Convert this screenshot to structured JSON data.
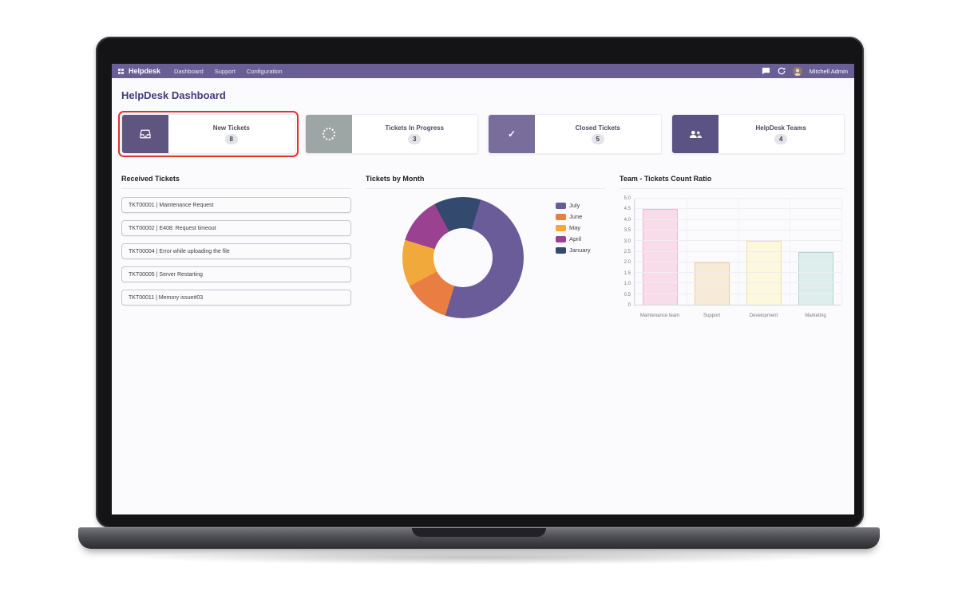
{
  "navbar": {
    "brand": "Helpdesk",
    "menu": [
      "Dashboard",
      "Support",
      "Configuration"
    ],
    "user": "Mitchell Admin"
  },
  "page": {
    "title": "HelpDesk Dashboard"
  },
  "colors": {
    "navbar_bg": "#6a5f94",
    "title": "#3f3c80",
    "highlight_border": "#e2312d"
  },
  "kpis": [
    {
      "label": "New Tickets",
      "value": "8",
      "icon": "inbox-icon",
      "icon_bg": "#5e5680",
      "highlighted": true
    },
    {
      "label": "Tickets In Progress",
      "value": "3",
      "icon": "spinner-icon",
      "icon_bg": "#9da6a4",
      "highlighted": false
    },
    {
      "label": "Closed Tickets",
      "value": "5",
      "icon": "check-icon",
      "icon_bg": "#796d9c",
      "highlighted": false
    },
    {
      "label": "HelpDesk Teams",
      "value": "4",
      "icon": "team-icon",
      "icon_bg": "#5b5383",
      "highlighted": false
    }
  ],
  "received_tickets": {
    "title": "Received Tickets",
    "items": [
      "TKT00001 | Maintenance Request",
      "TKT00002 | E408: Request timeout",
      "TKT00004 | Error while uploading the file",
      "TKT00005 | Server Restarting",
      "TKT00011 | Memory issue#03"
    ]
  },
  "chart_data": [
    {
      "type": "pie",
      "donut": true,
      "title": "Tickets by Month",
      "labels": [
        "July",
        "June",
        "May",
        "April",
        "January"
      ],
      "values": [
        4,
        1,
        1,
        1,
        1
      ],
      "colors": [
        "#6a5b99",
        "#e97e42",
        "#f2a93b",
        "#9b4191",
        "#34496e"
      ],
      "rotation_deg": 17,
      "legend_position": "right"
    },
    {
      "type": "bar",
      "title": "Team - Tickets Count Ratio",
      "categories": [
        "Maintenance team",
        "Support",
        "Development",
        "Marketing"
      ],
      "values": [
        4.5,
        2.0,
        3.0,
        2.5
      ],
      "colors": [
        "#f8dcea",
        "#f7ead6",
        "#fcf8dd",
        "#ddeeec"
      ],
      "border_colors": [
        "#eeb6d4",
        "#e6cc9f",
        "#e9e0a6",
        "#aed4cd"
      ],
      "ylim": [
        0,
        5
      ],
      "ytick_step": 0.5,
      "grid": true,
      "legend_position": "none"
    }
  ]
}
